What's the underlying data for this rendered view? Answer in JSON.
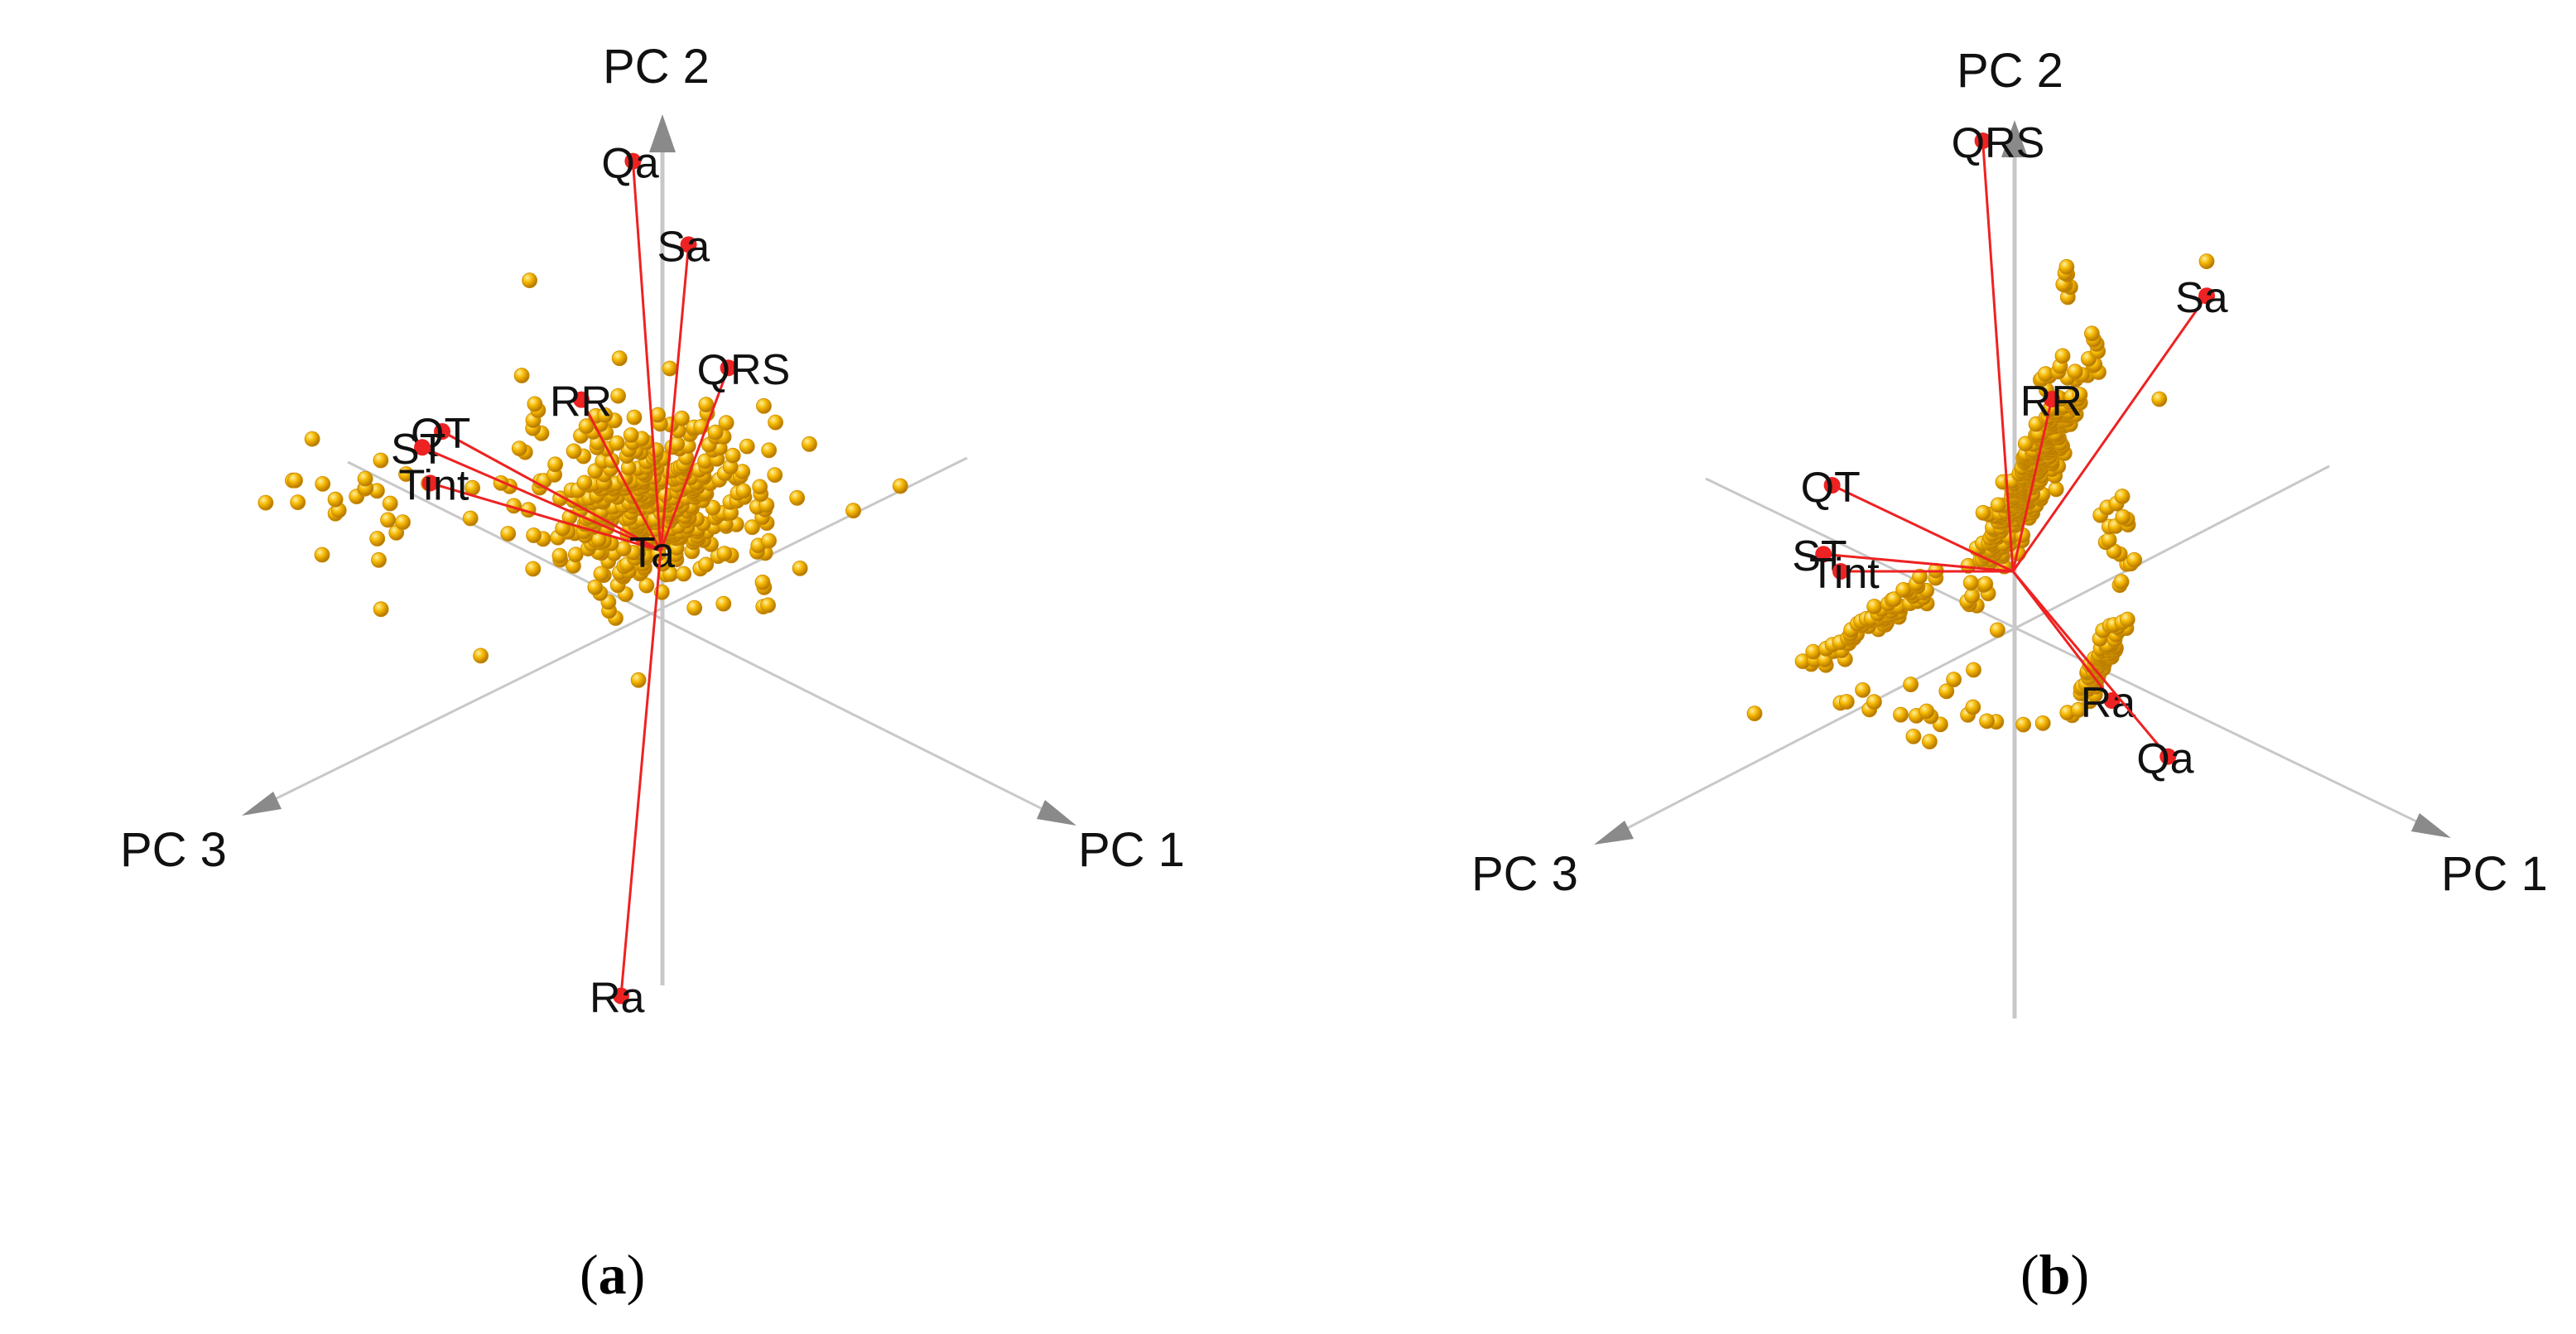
{
  "captions": {
    "a": "a",
    "b": "b"
  },
  "colors": {
    "point": "#f2b400",
    "point_edge": "#c98a00",
    "loading": "#ee2222",
    "axis": "#c8c8c8"
  },
  "chart_data": [
    {
      "type": "scatter",
      "panel": "a",
      "axes": [
        "PC 1",
        "PC 2",
        "PC 3"
      ],
      "axis_labels": {
        "pc1": "PC 1",
        "pc2": "PC 2",
        "pc3": "PC 3"
      },
      "loadings": [
        {
          "label": "Qa",
          "x": -0.07,
          "y": 0.98
        },
        {
          "label": "Sa",
          "x": 0.07,
          "y": 0.77
        },
        {
          "label": "QRS",
          "x": 0.17,
          "y": 0.46
        },
        {
          "label": "RR",
          "x": -0.2,
          "y": 0.38
        },
        {
          "label": "QT",
          "x": -0.55,
          "y": 0.3
        },
        {
          "label": "ST",
          "x": -0.6,
          "y": 0.26
        },
        {
          "label": "Tint",
          "x": -0.58,
          "y": 0.17
        },
        {
          "label": "Ta",
          "x": 0.0,
          "y": 0.0
        },
        {
          "label": "Ra",
          "x": -0.1,
          "y": -1.12
        }
      ],
      "clusters": [
        {
          "cx": -0.02,
          "cy": 0.12,
          "sx": 0.16,
          "sy": 0.11,
          "n": 420
        },
        {
          "cx": -0.72,
          "cy": 0.12,
          "sx": 0.12,
          "sy": 0.07,
          "n": 26
        }
      ],
      "outliers": [
        [
          -0.33,
          0.68
        ]
      ]
    },
    {
      "type": "scatter",
      "panel": "b",
      "axes": [
        "PC 1",
        "PC 2",
        "PC 3"
      ],
      "axis_labels": {
        "pc1": "PC 1",
        "pc2": "PC 2",
        "pc3": "PC 3"
      },
      "loadings": [
        {
          "label": "QRS",
          "x": -0.07,
          "y": 1.0
        },
        {
          "label": "Sa",
          "x": 0.45,
          "y": 0.64
        },
        {
          "label": "RR",
          "x": 0.09,
          "y": 0.4
        },
        {
          "label": "QT",
          "x": -0.42,
          "y": 0.2
        },
        {
          "label": "ST",
          "x": -0.44,
          "y": 0.04
        },
        {
          "label": "Tint",
          "x": -0.4,
          "y": 0.0
        },
        {
          "label": "Ra",
          "x": 0.23,
          "y": -0.3
        },
        {
          "label": "Qa",
          "x": 0.36,
          "y": -0.43
        }
      ],
      "clusters": [
        {
          "cx": 0.04,
          "cy": 0.22,
          "sx": 0.06,
          "sy": 0.06,
          "n": 300,
          "spread_axis": [
            0.45,
            0.9
          ]
        },
        {
          "cx": -0.33,
          "cy": -0.12,
          "sx": 0.04,
          "sy": 0.04,
          "n": 70,
          "spread_axis": [
            0.8,
            0.55
          ]
        },
        {
          "cx": 0.21,
          "cy": -0.2,
          "sx": 0.03,
          "sy": 0.03,
          "n": 70,
          "spread_axis": [
            0.5,
            0.9
          ]
        },
        {
          "cx": 0.24,
          "cy": 0.07,
          "sx": 0.02,
          "sy": 0.07,
          "n": 18
        },
        {
          "cx": 0.12,
          "cy": 0.68,
          "sx": 0.01,
          "sy": 0.02,
          "n": 7
        },
        {
          "cx": 0.08,
          "cy": 0.45,
          "sx": 0.02,
          "sy": 0.03,
          "n": 8
        },
        {
          "cx": -0.1,
          "cy": -0.3,
          "sx": 0.1,
          "sy": 0.06,
          "n": 16
        },
        {
          "cx": -0.4,
          "cy": -0.32,
          "sx": 0.18,
          "sy": 0.04,
          "n": 7
        }
      ],
      "outliers": [
        [
          0.45,
          0.72
        ],
        [
          0.34,
          0.4
        ],
        [
          -0.6,
          -0.33
        ]
      ]
    }
  ]
}
